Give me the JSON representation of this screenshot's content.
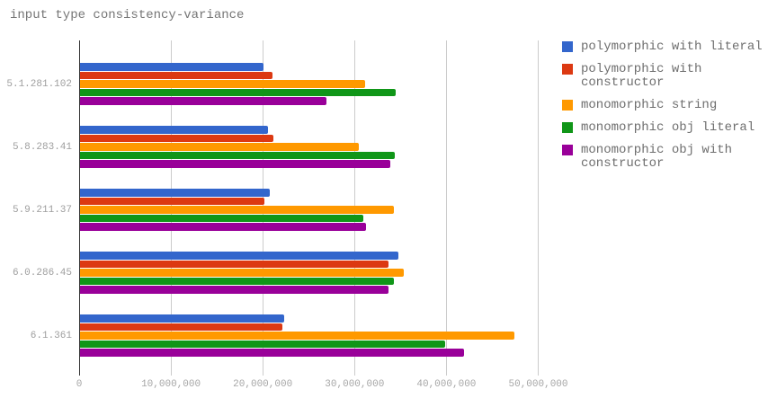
{
  "title": "input type consistency-variance",
  "colors": {
    "background": "#ffffff",
    "gridline": "#cccccc",
    "axis_line": "#333333",
    "title_text": "#757575",
    "category_text": "#9e9e9e",
    "tick_text": "#a6a6a6",
    "legend_text": "#6e6e6e"
  },
  "chart_data": {
    "type": "bar",
    "orientation": "horizontal",
    "title": "input type consistency-variance",
    "grid": true,
    "legend_position": "right",
    "categories": [
      "5.1.281.102",
      "5.8.283.41",
      "5.9.211.37",
      "6.0.286.45",
      "6.1.361"
    ],
    "series": [
      {
        "name": "polymorphic with literal",
        "color": "#3366cc",
        "values": [
          20000000,
          20500000,
          20700000,
          34700000,
          22200000
        ]
      },
      {
        "name": "polymorphic with constructor",
        "color": "#dc3912",
        "values": [
          21000000,
          21100000,
          20100000,
          33600000,
          22000000
        ]
      },
      {
        "name": "monomorphic string",
        "color": "#ff9900",
        "values": [
          31000000,
          30400000,
          34200000,
          35300000,
          47300000
        ]
      },
      {
        "name": "monomorphic obj literal",
        "color": "#109618",
        "values": [
          34400000,
          34300000,
          30900000,
          34200000,
          39800000
        ]
      },
      {
        "name": "monomorphic obj with constructor",
        "color": "#990099",
        "values": [
          26800000,
          33800000,
          31100000,
          33600000,
          41800000
        ]
      }
    ],
    "xaxis": {
      "ticks": [
        0,
        10000000,
        20000000,
        30000000,
        40000000,
        50000000
      ],
      "tick_labels": [
        "0",
        "10,000,000",
        "20,000,000",
        "30,000,000",
        "40,000,000",
        "50,000,000"
      ],
      "range": [
        0,
        56000000
      ]
    }
  }
}
